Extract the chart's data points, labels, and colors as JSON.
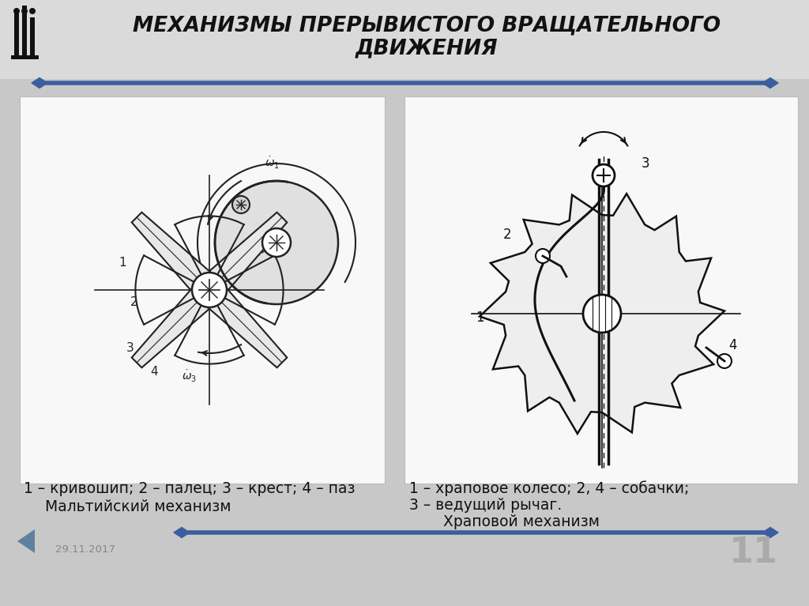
{
  "title_line1": "МЕХАНИЗМЫ ПРЕРЫВИСТОГО ВРАЩАТЕЛЬНОГО",
  "title_line2": "ДВИЖЕНИЯ",
  "bg_color": "#c8c8c8",
  "title_bg_color": "#dcdcdc",
  "panel_color": "#f0f0f0",
  "title_color": "#111111",
  "blue_line_color": "#3a5f9f",
  "diamond_color": "#4472C4",
  "date_text": "29.11.2017",
  "page_num": "11",
  "caption_left_line1": "1 – кривошип; 2 – палец; 3 – крест; 4 – паз",
  "caption_left_line2": "Мальтийский механизм",
  "caption_right_line1": "1 – храповое колесо; 2, 4 – собачки;",
  "caption_right_line2": "3 – ведущий рычаг.",
  "caption_right_line3": "Храповой механизм"
}
